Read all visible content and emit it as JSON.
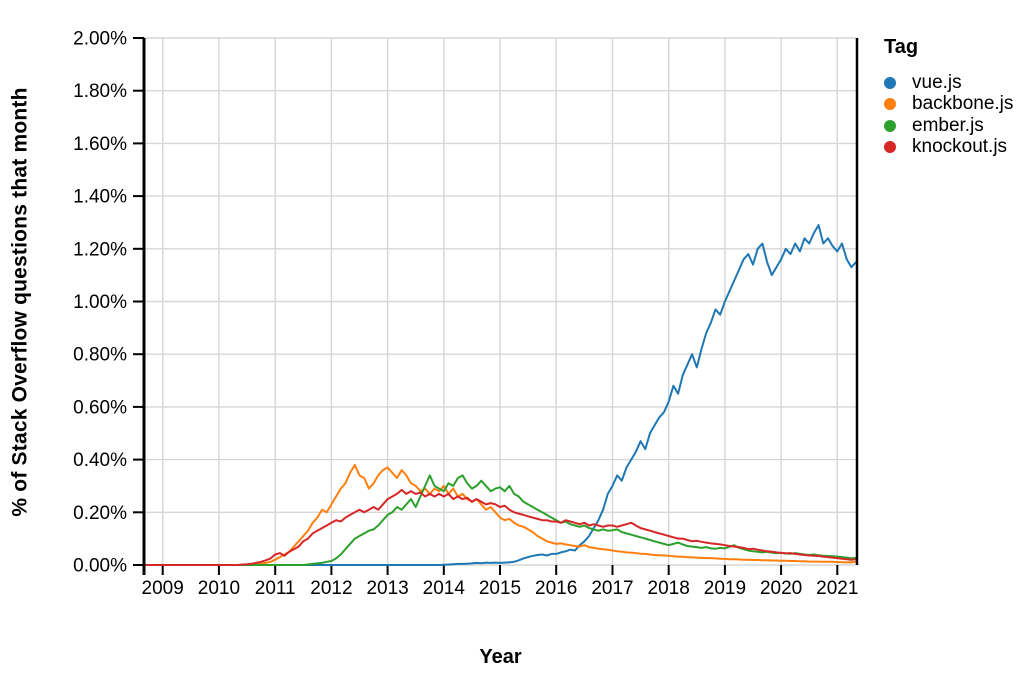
{
  "chart_data": {
    "type": "line",
    "xlabel": "Year",
    "ylabel": "% of Stack Overflow questions that month",
    "legend_title": "Tag",
    "legend_position": "right",
    "grid": true,
    "grid_color": "#d6d6d6",
    "axis_color": "#000000",
    "ylim": [
      0,
      2.0
    ],
    "x_domain": [
      2008.667,
      2021.35
    ],
    "x_start": 2008.667,
    "points_per_year": 12,
    "y_ticks": [
      {
        "value": 0.0,
        "label": "0.00%"
      },
      {
        "value": 0.2,
        "label": "0.20%"
      },
      {
        "value": 0.4,
        "label": "0.40%"
      },
      {
        "value": 0.6,
        "label": "0.60%"
      },
      {
        "value": 0.8,
        "label": "0.80%"
      },
      {
        "value": 1.0,
        "label": "1.00%"
      },
      {
        "value": 1.2,
        "label": "1.20%"
      },
      {
        "value": 1.4,
        "label": "1.40%"
      },
      {
        "value": 1.6,
        "label": "1.60%"
      },
      {
        "value": 1.8,
        "label": "1.80%"
      },
      {
        "value": 2.0,
        "label": "2.00%"
      }
    ],
    "x_ticks": [
      {
        "value": 2009,
        "label": "2009"
      },
      {
        "value": 2010,
        "label": "2010"
      },
      {
        "value": 2011,
        "label": "2011"
      },
      {
        "value": 2012,
        "label": "2012"
      },
      {
        "value": 2013,
        "label": "2013"
      },
      {
        "value": 2014,
        "label": "2014"
      },
      {
        "value": 2015,
        "label": "2015"
      },
      {
        "value": 2016,
        "label": "2016"
      },
      {
        "value": 2017,
        "label": "2017"
      },
      {
        "value": 2018,
        "label": "2018"
      },
      {
        "value": 2019,
        "label": "2019"
      },
      {
        "value": 2020,
        "label": "2020"
      },
      {
        "value": 2021,
        "label": "2021"
      }
    ],
    "series": [
      {
        "name": "vue.js",
        "color": "#1f77b4",
        "values": [
          0,
          0,
          0,
          0,
          0,
          0,
          0,
          0,
          0,
          0,
          0,
          0,
          0,
          0,
          0,
          0,
          0,
          0,
          0,
          0,
          0,
          0,
          0,
          0,
          0,
          0,
          0,
          0,
          0,
          0,
          0,
          0,
          0,
          0,
          0,
          0,
          0,
          0,
          0,
          0,
          0,
          0,
          0,
          0,
          0,
          0,
          0,
          0,
          0,
          0,
          0,
          0,
          0,
          0,
          0,
          0,
          0,
          0,
          0,
          0,
          0,
          0,
          0,
          0,
          0.001,
          0.002,
          0.003,
          0.004,
          0.004,
          0.005,
          0.006,
          0.008,
          0.007,
          0.009,
          0.008,
          0.009,
          0.008,
          0.009,
          0.01,
          0.012,
          0.018,
          0.025,
          0.03,
          0.035,
          0.038,
          0.04,
          0.036,
          0.042,
          0.042,
          0.048,
          0.052,
          0.058,
          0.055,
          0.075,
          0.09,
          0.11,
          0.14,
          0.17,
          0.21,
          0.27,
          0.3,
          0.34,
          0.32,
          0.37,
          0.4,
          0.43,
          0.47,
          0.44,
          0.5,
          0.53,
          0.56,
          0.58,
          0.62,
          0.68,
          0.65,
          0.72,
          0.76,
          0.8,
          0.75,
          0.82,
          0.88,
          0.92,
          0.97,
          0.95,
          1.0,
          1.04,
          1.08,
          1.12,
          1.16,
          1.18,
          1.14,
          1.2,
          1.22,
          1.15,
          1.1,
          1.13,
          1.16,
          1.2,
          1.18,
          1.22,
          1.19,
          1.24,
          1.22,
          1.26,
          1.29,
          1.22,
          1.24,
          1.21,
          1.19,
          1.22,
          1.16,
          1.13,
          1.15
        ]
      },
      {
        "name": "backbone.js",
        "color": "#ff7f0e",
        "values": [
          0,
          0,
          0,
          0,
          0,
          0,
          0,
          0,
          0,
          0,
          0,
          0,
          0,
          0,
          0,
          0,
          0,
          0,
          0,
          0,
          0,
          0,
          0,
          0.002,
          0.003,
          0.005,
          0.008,
          0.012,
          0.02,
          0.03,
          0.04,
          0.05,
          0.07,
          0.09,
          0.11,
          0.13,
          0.16,
          0.18,
          0.21,
          0.2,
          0.23,
          0.26,
          0.29,
          0.31,
          0.35,
          0.38,
          0.34,
          0.33,
          0.29,
          0.31,
          0.34,
          0.36,
          0.37,
          0.35,
          0.33,
          0.36,
          0.34,
          0.31,
          0.3,
          0.28,
          0.29,
          0.27,
          0.29,
          0.28,
          0.3,
          0.27,
          0.29,
          0.26,
          0.27,
          0.25,
          0.24,
          0.25,
          0.23,
          0.21,
          0.22,
          0.2,
          0.18,
          0.17,
          0.175,
          0.16,
          0.15,
          0.145,
          0.135,
          0.125,
          0.11,
          0.1,
          0.09,
          0.085,
          0.08,
          0.082,
          0.078,
          0.075,
          0.072,
          0.07,
          0.075,
          0.068,
          0.065,
          0.062,
          0.06,
          0.058,
          0.055,
          0.052,
          0.05,
          0.048,
          0.047,
          0.045,
          0.043,
          0.042,
          0.04,
          0.038,
          0.037,
          0.036,
          0.035,
          0.033,
          0.032,
          0.031,
          0.03,
          0.029,
          0.028,
          0.027,
          0.026,
          0.026,
          0.025,
          0.024,
          0.023,
          0.022,
          0.022,
          0.021,
          0.02,
          0.02,
          0.019,
          0.019,
          0.018,
          0.018,
          0.017,
          0.017,
          0.016,
          0.016,
          0.015,
          0.015,
          0.014,
          0.014,
          0.013,
          0.013,
          0.013,
          0.012,
          0.012,
          0.012,
          0.011,
          0.011,
          0.01,
          0.01,
          0.012
        ]
      },
      {
        "name": "ember.js",
        "color": "#2ca02c",
        "values": [
          0,
          0,
          0,
          0,
          0,
          0,
          0,
          0,
          0,
          0,
          0,
          0,
          0,
          0,
          0,
          0,
          0,
          0,
          0,
          0,
          0,
          0,
          0,
          0,
          0,
          0,
          0,
          0,
          0,
          0,
          0,
          0,
          0,
          0,
          0,
          0.002,
          0.004,
          0.006,
          0.008,
          0.012,
          0.015,
          0.025,
          0.04,
          0.06,
          0.08,
          0.1,
          0.11,
          0.12,
          0.13,
          0.135,
          0.15,
          0.17,
          0.19,
          0.2,
          0.22,
          0.21,
          0.23,
          0.25,
          0.22,
          0.26,
          0.3,
          0.34,
          0.3,
          0.29,
          0.28,
          0.31,
          0.3,
          0.33,
          0.34,
          0.31,
          0.29,
          0.3,
          0.32,
          0.3,
          0.28,
          0.29,
          0.295,
          0.28,
          0.3,
          0.27,
          0.26,
          0.24,
          0.23,
          0.22,
          0.21,
          0.2,
          0.19,
          0.18,
          0.17,
          0.16,
          0.165,
          0.155,
          0.15,
          0.145,
          0.15,
          0.14,
          0.135,
          0.13,
          0.135,
          0.13,
          0.132,
          0.135,
          0.125,
          0.12,
          0.115,
          0.11,
          0.105,
          0.1,
          0.095,
          0.09,
          0.085,
          0.08,
          0.075,
          0.08,
          0.085,
          0.078,
          0.072,
          0.07,
          0.068,
          0.065,
          0.068,
          0.063,
          0.062,
          0.065,
          0.063,
          0.07,
          0.075,
          0.065,
          0.06,
          0.055,
          0.052,
          0.05,
          0.048,
          0.05,
          0.047,
          0.045,
          0.046,
          0.044,
          0.043,
          0.045,
          0.042,
          0.04,
          0.038,
          0.04,
          0.037,
          0.035,
          0.034,
          0.033,
          0.032,
          0.03,
          0.028,
          0.025,
          0.027
        ]
      },
      {
        "name": "knockout.js",
        "color": "#d62728",
        "values": [
          0,
          0,
          0,
          0,
          0,
          0,
          0,
          0,
          0,
          0,
          0,
          0,
          0,
          0,
          0,
          0,
          0,
          0,
          0,
          0,
          0,
          0.002,
          0.003,
          0.005,
          0.008,
          0.012,
          0.018,
          0.025,
          0.04,
          0.045,
          0.035,
          0.05,
          0.06,
          0.07,
          0.09,
          0.1,
          0.12,
          0.13,
          0.14,
          0.15,
          0.16,
          0.17,
          0.165,
          0.18,
          0.19,
          0.2,
          0.21,
          0.2,
          0.21,
          0.22,
          0.21,
          0.23,
          0.25,
          0.26,
          0.27,
          0.285,
          0.27,
          0.28,
          0.27,
          0.275,
          0.26,
          0.27,
          0.26,
          0.27,
          0.26,
          0.27,
          0.25,
          0.26,
          0.25,
          0.255,
          0.24,
          0.25,
          0.24,
          0.23,
          0.235,
          0.23,
          0.22,
          0.225,
          0.21,
          0.2,
          0.195,
          0.19,
          0.185,
          0.18,
          0.175,
          0.17,
          0.17,
          0.165,
          0.165,
          0.16,
          0.17,
          0.165,
          0.16,
          0.155,
          0.16,
          0.15,
          0.155,
          0.15,
          0.145,
          0.15,
          0.15,
          0.145,
          0.15,
          0.155,
          0.16,
          0.15,
          0.14,
          0.135,
          0.13,
          0.125,
          0.12,
          0.115,
          0.11,
          0.105,
          0.1,
          0.1,
          0.095,
          0.09,
          0.092,
          0.088,
          0.085,
          0.082,
          0.08,
          0.078,
          0.075,
          0.072,
          0.07,
          0.068,
          0.065,
          0.06,
          0.062,
          0.058,
          0.055,
          0.052,
          0.05,
          0.048,
          0.046,
          0.044,
          0.045,
          0.042,
          0.04,
          0.038,
          0.036,
          0.035,
          0.034,
          0.032,
          0.03,
          0.028,
          0.026,
          0.024,
          0.022,
          0.02,
          0.022
        ]
      }
    ]
  }
}
